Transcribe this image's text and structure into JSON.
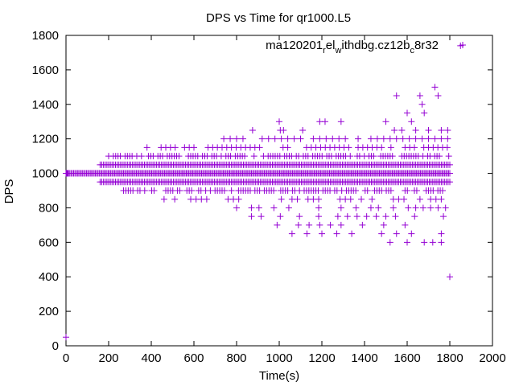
{
  "chart_data": {
    "type": "scatter",
    "title": "DPS vs Time for qr1000.L5",
    "xlabel": "Time(s)",
    "ylabel": "DPS",
    "xlim": [
      0,
      2000
    ],
    "ylim": [
      0,
      1800
    ],
    "xticks": [
      0,
      200,
      400,
      600,
      800,
      1000,
      1200,
      1400,
      1600,
      1800,
      2000
    ],
    "yticks": [
      0,
      200,
      400,
      600,
      800,
      1000,
      1200,
      1400,
      1600,
      1800
    ],
    "grid": false,
    "legend_position": "top-right",
    "series": [
      {
        "name": "ma120201relwithdbg.cz12bc8r32",
        "legend": {
          "main": "ma120201",
          "sub1": "r",
          "mid1": "el",
          "sub2": "w",
          "mid2": "ithdbg.cz12b",
          "sub3": "c",
          "tail": "8r32"
        },
        "color": "#9400d3",
        "marker": "plus",
        "points": [
          [
            0,
            50
          ],
          [
            2,
            1000
          ],
          [
            4,
            1000
          ],
          [
            6,
            1000
          ],
          [
            8,
            1000
          ],
          [
            10,
            1000
          ],
          [
            1850,
            1740
          ],
          [
            1800,
            400
          ],
          [
            1730,
            1500
          ],
          [
            1745,
            1450
          ],
          [
            1660,
            1450
          ],
          [
            1670,
            1400
          ],
          [
            1680,
            1350
          ],
          [
            1620,
            1300
          ],
          [
            1640,
            1250
          ],
          [
            1600,
            1350
          ],
          [
            1000,
            1300
          ],
          [
            1190,
            1300
          ],
          [
            1215,
            1300
          ],
          [
            1290,
            1300
          ],
          [
            1500,
            1300
          ],
          [
            1005,
            1250
          ],
          [
            1020,
            1250
          ],
          [
            875,
            1250
          ],
          [
            1110,
            1250
          ],
          [
            1540,
            1250
          ],
          [
            1575,
            1250
          ],
          [
            1700,
            1250
          ],
          [
            1760,
            1250
          ],
          [
            1790,
            1250
          ],
          [
            1550,
            1450
          ]
        ],
        "bands": [
          {
            "y": 1000,
            "x": [
              0,
              1800
            ],
            "step": 6
          },
          {
            "y": 1050,
            "x": [
              160,
              1800
            ],
            "step": 8
          },
          {
            "y": 950,
            "x": [
              160,
              1800
            ],
            "step": 8
          },
          {
            "y": 1100,
            "x": [
              200,
              1800
            ],
            "step": 11
          },
          {
            "y": 900,
            "x": [
              270,
              1770
            ],
            "step": 11
          },
          {
            "y": 1150,
            "x": [
              380,
              1800
            ],
            "step": 22
          },
          {
            "y": 850,
            "x": [
              460,
              1780
            ],
            "step": 25
          },
          {
            "y": 1200,
            "x": [
              650,
              1800
            ],
            "step": 30
          },
          {
            "y": 800,
            "x": [
              800,
              1790
            ],
            "step": 35
          },
          {
            "y": 750,
            "x": [
              870,
              1790
            ],
            "step": 45
          },
          {
            "y": 700,
            "x": [
              990,
              1790
            ],
            "step": 50
          },
          {
            "y": 650,
            "x": [
              1060,
              1780
            ],
            "step": 70
          },
          {
            "y": 600,
            "x": [
              1520,
              1790
            ],
            "step": 40
          }
        ]
      }
    ]
  }
}
